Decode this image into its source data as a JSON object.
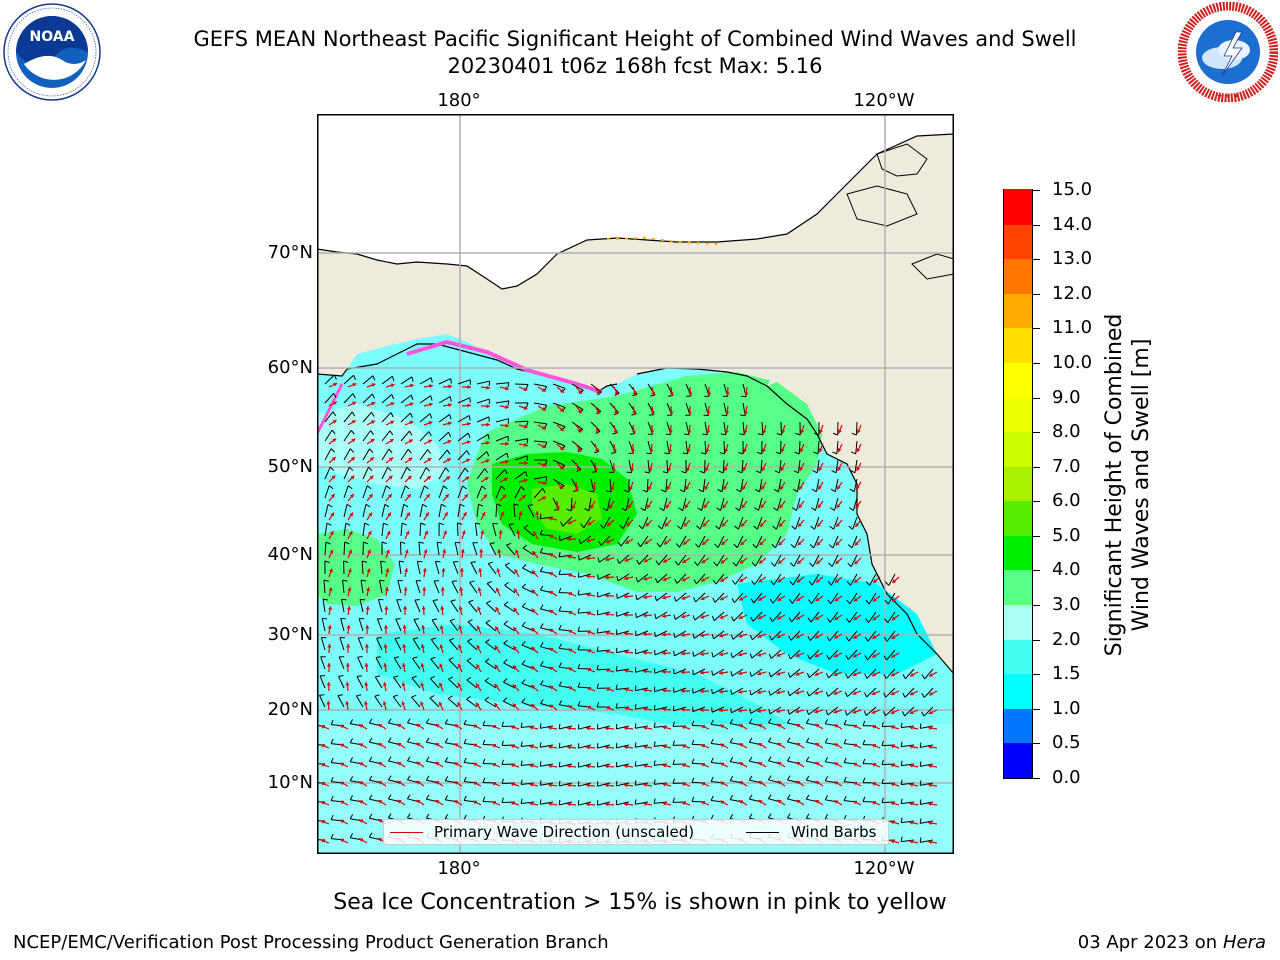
{
  "header": {
    "title_line1": "GEFS MEAN Northeast Pacific Significant Height of Combined Wind Waves and Swell",
    "title_line2": "20230401 t06z 168h fcst   Max: 5.16"
  },
  "logos": {
    "left": "noaa-logo",
    "left_text": "NOAA",
    "right": "national-weather-service-logo",
    "right_text": "NATIONAL WEATHER SERVICE"
  },
  "map": {
    "lon_labels": [
      "180°",
      "120°W"
    ],
    "lat_labels": [
      "70°N",
      "60°N",
      "50°N",
      "40°N",
      "30°N",
      "20°N",
      "10°N"
    ],
    "colors": {
      "land": "#efebdc",
      "ocean_base": "#7dfcfc",
      "coastline": "#000000",
      "gridline": "#b0b0b0",
      "wind_barb": "#000000",
      "wave_direction": "#e00000",
      "sea_ice": "#ff55dd"
    }
  },
  "legend": {
    "wave_direction_label": "Primary Wave Direction (unscaled)",
    "wind_barbs_label": "Wind Barbs"
  },
  "colorbar": {
    "title_line1": "Significant Height of Combined",
    "title_line2": "Wind Waves and Swell [m]",
    "tick_labels": [
      "15.0",
      "14.0",
      "13.0",
      "12.0",
      "11.0",
      "10.0",
      "9.0",
      "8.0",
      "7.0",
      "6.0",
      "5.0",
      "4.0",
      "3.0",
      "2.0",
      "1.5",
      "1.0",
      "0.5",
      "0.0"
    ],
    "colors_bottom_to_top": [
      "#0000ff",
      "#0077ff",
      "#00ffff",
      "#44fff0",
      "#aafff7",
      "#55ff88",
      "#00ee00",
      "#55ee00",
      "#aaee00",
      "#ccff00",
      "#eeff00",
      "#ffff00",
      "#ffdd00",
      "#ffaa00",
      "#ff7700",
      "#ff4400",
      "#ff0000"
    ]
  },
  "caption": "Sea Ice Concentration > 15% is shown in pink to yellow",
  "footer": {
    "left": "NCEP/EMC/Verification Post Processing Product Generation Branch",
    "date": "03 Apr 2023 on",
    "host": "Hera"
  }
}
